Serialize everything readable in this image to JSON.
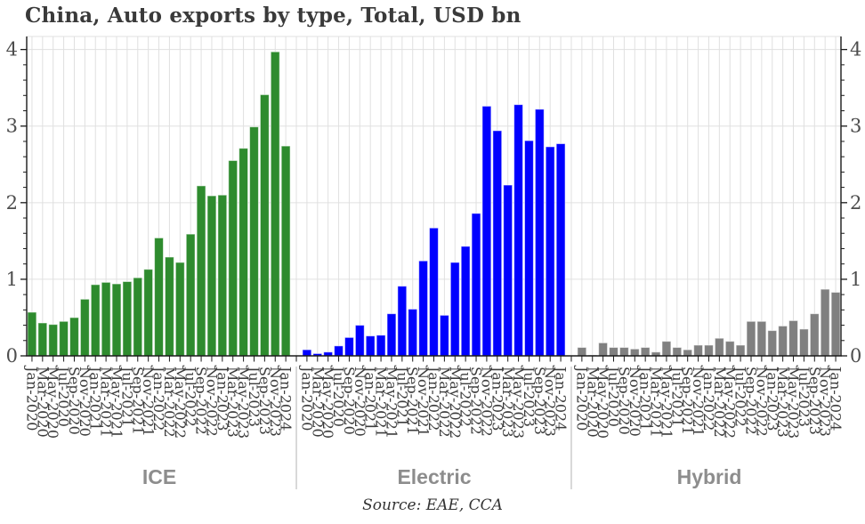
{
  "header": {
    "title": "China, Auto exports by type, Total, USD bn"
  },
  "source": {
    "text": "Source: EAE, CCA"
  },
  "colors": {
    "ice_bar": "#2e8b2e",
    "electric_bar": "#0000ff",
    "hybrid_bar": "#808080",
    "bar_edge": "rgba(255,255,255,0.55)",
    "gridline": "#e0e0e0",
    "axis_line": "#1a1a1a",
    "tick_label": "#4d4d4d",
    "month_label": "#3d3d3d",
    "panel_divider": "#cccccc",
    "panel_label": "#8d8d8d"
  },
  "chart_data": {
    "type": "bar",
    "title": "China, Auto exports by type, Total, USD bn",
    "layout": "three-panel-shared-y, y-axis labeled on both left and right, light gray gridlines, vertical month labels",
    "categories": [
      "Jan-2020",
      "Mar-2020",
      "May-2020",
      "Jul-2020",
      "Sep-2020",
      "Nov-2020",
      "Jan-2021",
      "Mar-2021",
      "May-2021",
      "Jul-2021",
      "Sep-2021",
      "Nov-2021",
      "Jan-2022",
      "Mar-2022",
      "May-2022",
      "Jul-2022",
      "Sep-2022",
      "Nov-2022",
      "Jan-2023",
      "Mar-2023",
      "May-2023",
      "Jul-2023",
      "Sep-2023",
      "Nov-2023",
      "Jan-2024"
    ],
    "series": [
      {
        "name": "ICE",
        "color": "#2e8b2e",
        "values": [
          0.57,
          0.43,
          0.41,
          0.45,
          0.5,
          0.74,
          0.93,
          0.96,
          0.94,
          0.97,
          1.02,
          1.13,
          1.54,
          1.29,
          1.22,
          1.59,
          2.22,
          2.09,
          2.1,
          2.55,
          2.71,
          2.99,
          3.41,
          3.97,
          2.74
        ]
      },
      {
        "name": "Electric",
        "color": "#0000ff",
        "values": [
          0.08,
          0.03,
          0.05,
          0.13,
          0.24,
          0.4,
          0.26,
          0.27,
          0.55,
          0.91,
          0.61,
          1.24,
          1.67,
          0.53,
          1.22,
          1.43,
          1.86,
          3.26,
          2.94,
          2.23,
          3.28,
          2.81,
          3.22,
          2.73,
          2.77
        ]
      },
      {
        "name": "Hybrid",
        "color": "#808080",
        "values": [
          0.11,
          0.01,
          0.17,
          0.11,
          0.11,
          0.09,
          0.11,
          0.05,
          0.19,
          0.11,
          0.08,
          0.14,
          0.14,
          0.23,
          0.19,
          0.14,
          0.45,
          0.45,
          0.33,
          0.39,
          0.46,
          0.35,
          0.55,
          0.87,
          0.83
        ]
      }
    ],
    "xlabel": "",
    "ylabel": "",
    "ylim": [
      0,
      4.17
    ],
    "yticks": [
      0,
      1,
      2,
      3,
      4
    ],
    "y_minor_tick_step": 0.2,
    "grid": true,
    "source": "Source: EAE, CCA"
  }
}
